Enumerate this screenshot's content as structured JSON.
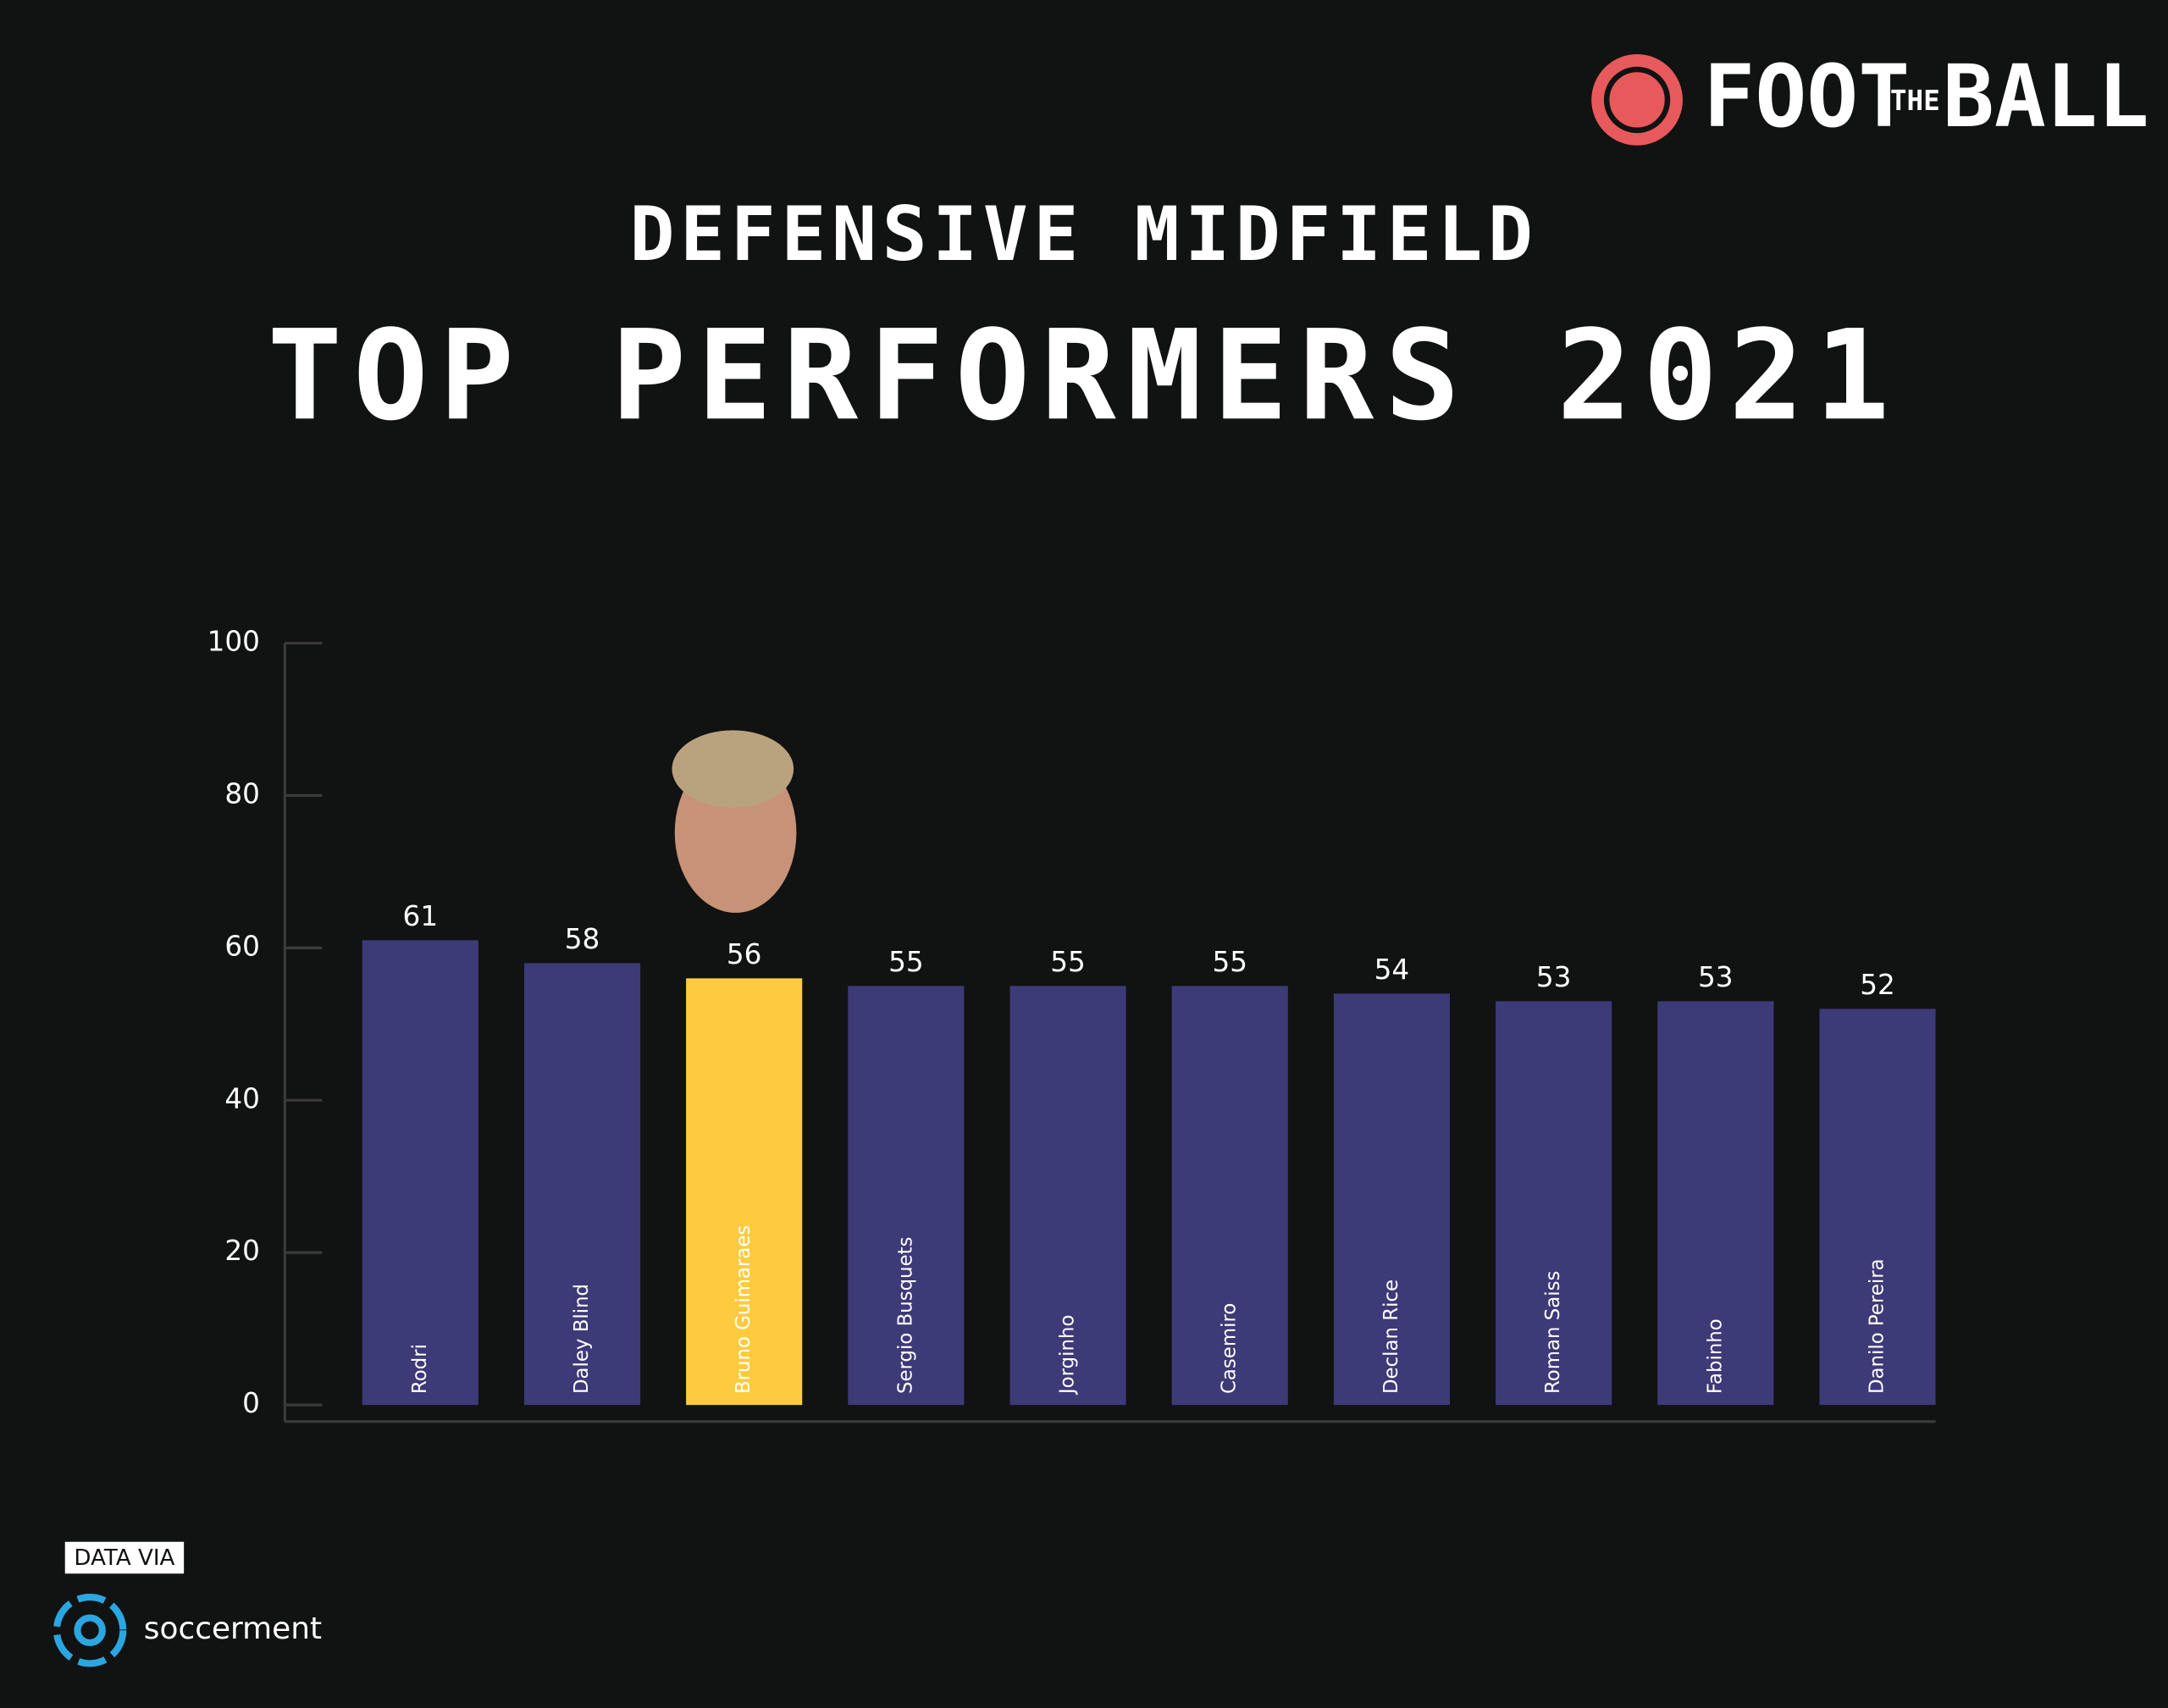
{
  "chart_data": {
    "type": "bar",
    "title": "DEFENSIVE MIDFIELD",
    "subtitle": "TOP PERFORMERS 2021",
    "categories": [
      "Rodri",
      "Daley Blind",
      "Bruno Guimaraes",
      "Sergio Busquets",
      "Jorginho",
      "Casemiro",
      "Declan Rice",
      "Roman Saiss",
      "Fabinho",
      "Danilo Pereira"
    ],
    "values": [
      61,
      58,
      56,
      55,
      55,
      55,
      54,
      53,
      53,
      52
    ],
    "colors": [
      "#3d3a78",
      "#3d3a78",
      "#fecb40",
      "#3d3a78",
      "#3d3a78",
      "#3d3a78",
      "#3d3a78",
      "#3d3a78",
      "#3d3a78",
      "#3d3a78"
    ],
    "ylim": [
      0,
      100
    ],
    "yticks": [
      0,
      20,
      40,
      60,
      80,
      100
    ],
    "grid": false
  },
  "logo": [
    "FOOT",
    "THE",
    "BALL"
  ],
  "source_label": "DATA VIA",
  "source": "soccerment"
}
